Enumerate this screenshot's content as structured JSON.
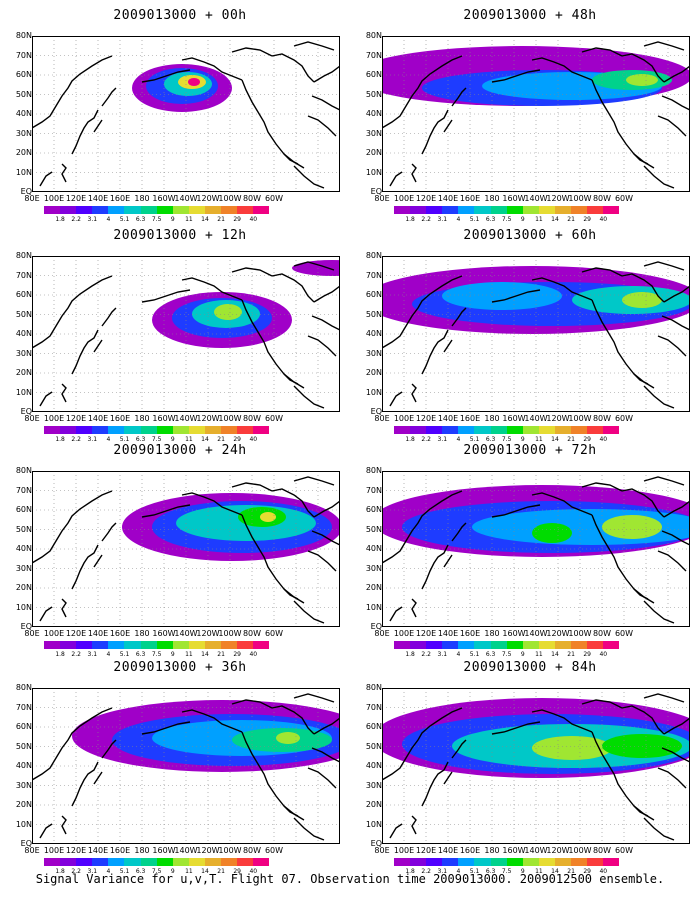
{
  "panels": [
    {
      "title": "2009013000 + 00h",
      "id": "00h"
    },
    {
      "title": "2009013000 + 48h",
      "id": "48h"
    },
    {
      "title": "2009013000 + 12h",
      "id": "12h"
    },
    {
      "title": "2009013000 + 60h",
      "id": "60h"
    },
    {
      "title": "2009013000 + 24h",
      "id": "24h"
    },
    {
      "title": "2009013000 + 72h",
      "id": "72h"
    },
    {
      "title": "2009013000 + 36h",
      "id": "36h"
    },
    {
      "title": "2009013000 + 84h",
      "id": "84h"
    }
  ],
  "lat_labels": [
    "80N",
    "70N",
    "60N",
    "50N",
    "40N",
    "30N",
    "20N",
    "10N",
    "EQ"
  ],
  "lon_labels": [
    "80E",
    "100E",
    "120E",
    "140E",
    "160E",
    "180",
    "160W",
    "140W",
    "120W",
    "100W",
    "80W",
    "60W"
  ],
  "colorbar": {
    "labels": [
      "1.8",
      "2.2",
      "3.1",
      "4",
      "5.1",
      "6.3",
      "7.5",
      "9",
      "11",
      "14",
      "21",
      "29",
      "40"
    ],
    "colors": [
      "#a000c8",
      "#8200dc",
      "#5000ff",
      "#1e3cff",
      "#00a0ff",
      "#00c8c8",
      "#00d28c",
      "#00dc00",
      "#a0e632",
      "#e6dc32",
      "#e6af2d",
      "#f08228",
      "#fa3c3c",
      "#f00082"
    ]
  },
  "caption": "Signal Variance for u,v,T. Flight 07. Observation time 2009013000. 2009012500 ensemble."
}
